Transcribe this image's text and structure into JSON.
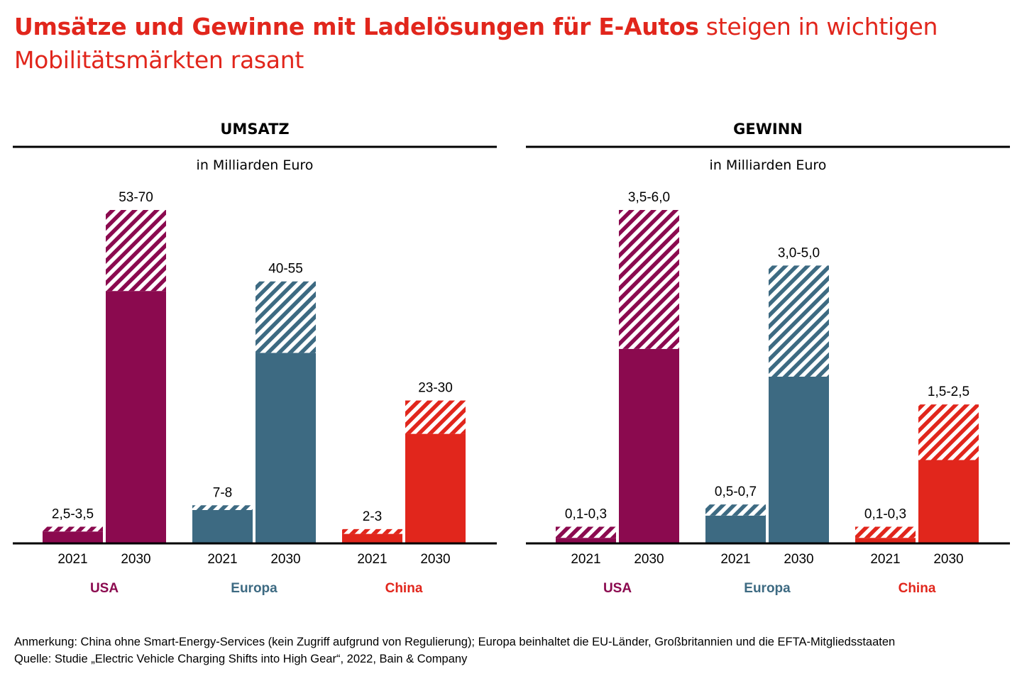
{
  "title": {
    "bold": "Umsätze und Gewinne mit Ladelösungen für E-Autos",
    "line1_rest": " steigen in wichtigen",
    "line2": "Mobilitätsmärkten rasant"
  },
  "colors": {
    "title": "#e1261c",
    "USA": "#8b0a4f",
    "Europa": "#3d6a82",
    "China": "#e1261c"
  },
  "chart_data": [
    {
      "type": "bar",
      "title": "UMSATZ",
      "subtitle": "in Milliarden Euro",
      "ylim": [
        0,
        70
      ],
      "groups": [
        "USA",
        "Europa",
        "China"
      ],
      "years": [
        "2021",
        "2030"
      ],
      "bars": [
        {
          "group": "USA",
          "year": "2021",
          "low": 2.5,
          "high": 3.5,
          "label": "2,5-3,5"
        },
        {
          "group": "USA",
          "year": "2030",
          "low": 53,
          "high": 70,
          "label": "53-70"
        },
        {
          "group": "Europa",
          "year": "2021",
          "low": 7,
          "high": 8,
          "label": "7-8"
        },
        {
          "group": "Europa",
          "year": "2030",
          "low": 40,
          "high": 55,
          "label": "40-55"
        },
        {
          "group": "China",
          "year": "2021",
          "low": 2,
          "high": 3,
          "label": "2-3"
        },
        {
          "group": "China",
          "year": "2030",
          "low": 23,
          "high": 30,
          "label": "23-30"
        }
      ]
    },
    {
      "type": "bar",
      "title": "GEWINN",
      "subtitle": "in Milliarden Euro",
      "ylim": [
        0,
        6.0
      ],
      "groups": [
        "USA",
        "Europa",
        "China"
      ],
      "years": [
        "2021",
        "2030"
      ],
      "bars": [
        {
          "group": "USA",
          "year": "2021",
          "low": 0.1,
          "high": 0.3,
          "label": "0,1-0,3"
        },
        {
          "group": "USA",
          "year": "2030",
          "low": 3.5,
          "high": 6.0,
          "label": "3,5-6,0"
        },
        {
          "group": "Europa",
          "year": "2021",
          "low": 0.5,
          "high": 0.7,
          "label": "0,5-0,7"
        },
        {
          "group": "Europa",
          "year": "2030",
          "low": 3.0,
          "high": 5.0,
          "label": "3,0-5,0"
        },
        {
          "group": "China",
          "year": "2021",
          "low": 0.1,
          "high": 0.3,
          "label": "0,1-0,3"
        },
        {
          "group": "China",
          "year": "2030",
          "low": 1.5,
          "high": 2.5,
          "label": "1,5-2,5"
        }
      ]
    }
  ],
  "footer": {
    "note": "Anmerkung: China ohne Smart-Energy-Services (kein Zugriff aufgrund von Regulierung); Europa beinhaltet die EU-Länder, Großbritannien und die EFTA-Mitgliedsstaaten",
    "source": "Quelle: Studie „Electric Vehicle Charging Shifts into High Gear“, 2022, Bain & Company"
  }
}
